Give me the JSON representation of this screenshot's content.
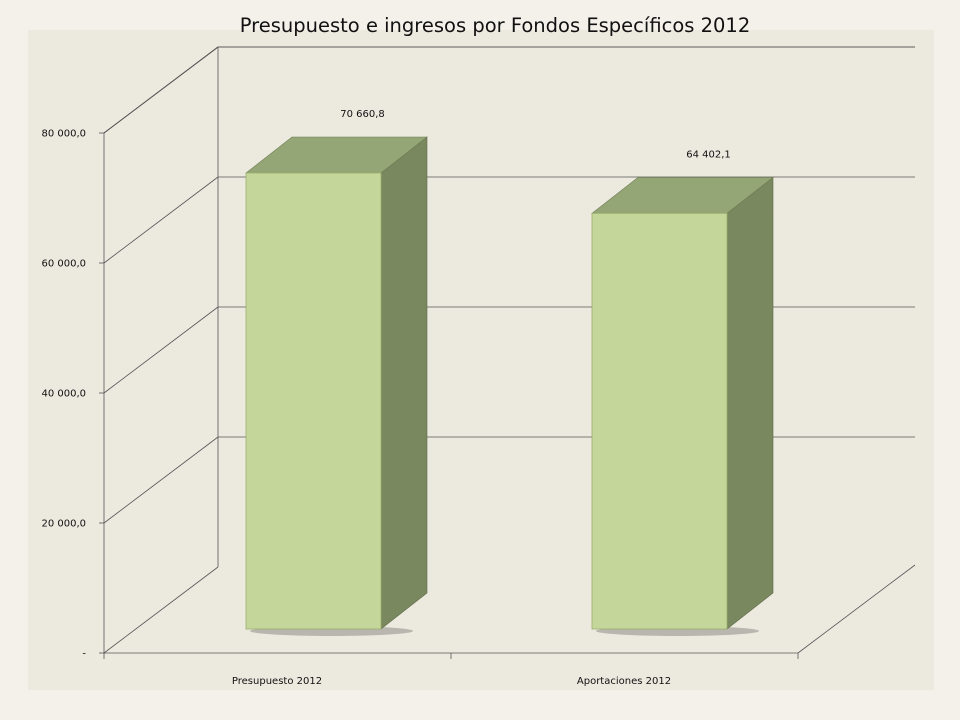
{
  "chart_data": {
    "type": "bar",
    "style": "3d-column",
    "title": "Presupuesto e ingresos por Fondos Específicos 2012",
    "categories": [
      "Presupuesto 2012",
      "Aportaciones 2012"
    ],
    "values": [
      70660.8,
      64402.1
    ],
    "data_labels": [
      "70 660,8",
      "64 402,1"
    ],
    "y_ticks": [
      0,
      20000,
      40000,
      60000,
      80000
    ],
    "y_tick_labels": [
      "-",
      "20 000,0",
      "40 000,0",
      "60 000,0",
      "80 000,0"
    ],
    "ylim": [
      0,
      80000
    ],
    "grid": true,
    "xlabel": "",
    "ylabel": "",
    "colors": {
      "bar_front": "#c4d69a",
      "bar_side": "#7a8860",
      "bar_top": "#94a676",
      "grid": "#555555"
    }
  }
}
